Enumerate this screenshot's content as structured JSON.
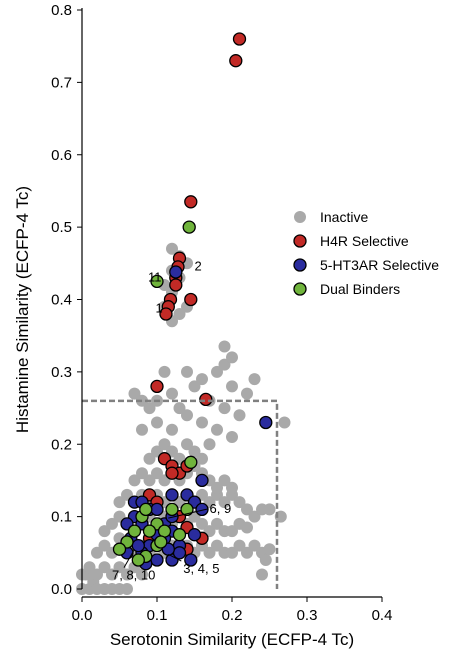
{
  "chart_data": {
    "type": "scatter",
    "xlabel": "Serotonin Similarity (ECFP-4 Tc)",
    "ylabel": "Histamine Similarity (ECFP-4 Tc)",
    "xlim": [
      0,
      0.4
    ],
    "ylim": [
      0,
      0.8
    ],
    "xticks": [
      "0.0",
      "0.1",
      "0.2",
      "0.3",
      "0.4"
    ],
    "yticks": [
      "0.0",
      "0.1",
      "0.2",
      "0.3",
      "0.4",
      "0.5",
      "0.6",
      "0.7",
      "0.8"
    ],
    "legend_position": "right",
    "threshold_box": {
      "x": [
        0,
        0.26
      ],
      "y": [
        0,
        0.26
      ],
      "style": "dashed",
      "color": "#808080"
    },
    "series": [
      {
        "name": "Inactive",
        "color": "#a9a9a9",
        "outline": false,
        "points": [
          [
            0.0,
            0.0
          ],
          [
            0.005,
            0.02
          ],
          [
            0.01,
            0.0
          ],
          [
            0.015,
            0.01
          ],
          [
            0.02,
            0.0
          ],
          [
            0.03,
            0.0
          ],
          [
            0.04,
            0.0
          ],
          [
            0.05,
            0.0
          ],
          [
            0.06,
            0.0
          ],
          [
            0.0,
            0.02
          ],
          [
            0.01,
            0.03
          ],
          [
            0.02,
            0.02
          ],
          [
            0.03,
            0.03
          ],
          [
            0.04,
            0.02
          ],
          [
            0.05,
            0.03
          ],
          [
            0.06,
            0.02
          ],
          [
            0.07,
            0.03
          ],
          [
            0.08,
            0.02
          ],
          [
            0.02,
            0.05
          ],
          [
            0.03,
            0.06
          ],
          [
            0.04,
            0.05
          ],
          [
            0.05,
            0.07
          ],
          [
            0.06,
            0.06
          ],
          [
            0.07,
            0.05
          ],
          [
            0.08,
            0.06
          ],
          [
            0.09,
            0.05
          ],
          [
            0.1,
            0.06
          ],
          [
            0.11,
            0.05
          ],
          [
            0.12,
            0.06
          ],
          [
            0.13,
            0.05
          ],
          [
            0.14,
            0.06
          ],
          [
            0.15,
            0.05
          ],
          [
            0.16,
            0.06
          ],
          [
            0.17,
            0.05
          ],
          [
            0.18,
            0.06
          ],
          [
            0.19,
            0.05
          ],
          [
            0.2,
            0.05
          ],
          [
            0.21,
            0.06
          ],
          [
            0.22,
            0.05
          ],
          [
            0.23,
            0.06
          ],
          [
            0.24,
            0.05
          ],
          [
            0.25,
            0.055
          ],
          [
            0.03,
            0.08
          ],
          [
            0.04,
            0.09
          ],
          [
            0.05,
            0.1
          ],
          [
            0.06,
            0.09
          ],
          [
            0.07,
            0.1
          ],
          [
            0.08,
            0.09
          ],
          [
            0.09,
            0.1
          ],
          [
            0.1,
            0.09
          ],
          [
            0.11,
            0.1
          ],
          [
            0.12,
            0.09
          ],
          [
            0.13,
            0.1
          ],
          [
            0.14,
            0.09
          ],
          [
            0.15,
            0.1
          ],
          [
            0.16,
            0.09
          ],
          [
            0.17,
            0.08
          ],
          [
            0.18,
            0.09
          ],
          [
            0.19,
            0.08
          ],
          [
            0.2,
            0.08
          ],
          [
            0.21,
            0.09
          ],
          [
            0.22,
            0.085
          ],
          [
            0.23,
            0.1
          ],
          [
            0.24,
            0.11
          ],
          [
            0.05,
            0.12
          ],
          [
            0.06,
            0.13
          ],
          [
            0.07,
            0.12
          ],
          [
            0.08,
            0.13
          ],
          [
            0.09,
            0.12
          ],
          [
            0.1,
            0.13
          ],
          [
            0.11,
            0.12
          ],
          [
            0.12,
            0.13
          ],
          [
            0.13,
            0.12
          ],
          [
            0.14,
            0.13
          ],
          [
            0.15,
            0.12
          ],
          [
            0.16,
            0.13
          ],
          [
            0.17,
            0.12
          ],
          [
            0.18,
            0.13
          ],
          [
            0.19,
            0.12
          ],
          [
            0.2,
            0.13
          ],
          [
            0.21,
            0.12
          ],
          [
            0.22,
            0.11
          ],
          [
            0.07,
            0.15
          ],
          [
            0.08,
            0.16
          ],
          [
            0.09,
            0.15
          ],
          [
            0.1,
            0.16
          ],
          [
            0.11,
            0.15
          ],
          [
            0.12,
            0.16
          ],
          [
            0.13,
            0.15
          ],
          [
            0.14,
            0.16
          ],
          [
            0.15,
            0.17
          ],
          [
            0.16,
            0.16
          ],
          [
            0.17,
            0.15
          ],
          [
            0.18,
            0.14
          ],
          [
            0.19,
            0.15
          ],
          [
            0.2,
            0.14
          ],
          [
            0.09,
            0.18
          ],
          [
            0.1,
            0.19
          ],
          [
            0.11,
            0.2
          ],
          [
            0.12,
            0.19
          ],
          [
            0.13,
            0.18
          ],
          [
            0.14,
            0.2
          ],
          [
            0.15,
            0.19
          ],
          [
            0.16,
            0.18
          ],
          [
            0.17,
            0.2
          ],
          [
            0.08,
            0.22
          ],
          [
            0.1,
            0.23
          ],
          [
            0.12,
            0.22
          ],
          [
            0.14,
            0.24
          ],
          [
            0.16,
            0.23
          ],
          [
            0.18,
            0.22
          ],
          [
            0.2,
            0.21
          ],
          [
            0.1,
            0.26
          ],
          [
            0.12,
            0.27
          ],
          [
            0.13,
            0.25
          ],
          [
            0.15,
            0.28
          ],
          [
            0.17,
            0.26
          ],
          [
            0.19,
            0.25
          ],
          [
            0.21,
            0.24
          ],
          [
            0.18,
            0.3
          ],
          [
            0.19,
            0.31
          ],
          [
            0.2,
            0.32
          ],
          [
            0.19,
            0.335
          ],
          [
            0.16,
            0.29
          ],
          [
            0.14,
            0.3
          ],
          [
            0.11,
            0.3
          ],
          [
            0.09,
            0.25
          ],
          [
            0.07,
            0.27
          ],
          [
            0.08,
            0.26
          ],
          [
            0.22,
            0.27
          ],
          [
            0.2,
            0.28
          ],
          [
            0.23,
            0.29
          ],
          [
            0.12,
            0.47
          ],
          [
            0.12,
            0.44
          ],
          [
            0.13,
            0.43
          ],
          [
            0.11,
            0.42
          ],
          [
            0.12,
            0.41
          ],
          [
            0.11,
            0.39
          ],
          [
            0.13,
            0.38
          ],
          [
            0.14,
            0.39
          ],
          [
            0.12,
            0.37
          ],
          [
            0.14,
            0.45
          ],
          [
            0.13,
            0.46
          ],
          [
            0.27,
            0.23
          ],
          [
            0.265,
            0.1
          ],
          [
            0.245,
            0.04
          ],
          [
            0.25,
            0.11
          ],
          [
            0.24,
            0.02
          ]
        ]
      },
      {
        "name": "H4R Selective",
        "label": "H4R Selective",
        "color": "#c22a26",
        "outline": true,
        "points": [
          [
            0.21,
            0.76
          ],
          [
            0.205,
            0.73
          ],
          [
            0.145,
            0.535
          ],
          [
            0.13,
            0.457
          ],
          [
            0.128,
            0.445
          ],
          [
            0.125,
            0.43
          ],
          [
            0.125,
            0.42
          ],
          [
            0.145,
            0.4
          ],
          [
            0.118,
            0.4
          ],
          [
            0.115,
            0.39
          ],
          [
            0.112,
            0.38
          ],
          [
            0.1,
            0.28
          ],
          [
            0.165,
            0.262
          ],
          [
            0.11,
            0.18
          ],
          [
            0.12,
            0.17
          ],
          [
            0.13,
            0.16
          ],
          [
            0.14,
            0.17
          ],
          [
            0.12,
            0.16
          ],
          [
            0.09,
            0.13
          ],
          [
            0.1,
            0.12
          ],
          [
            0.13,
            0.1
          ],
          [
            0.14,
            0.085
          ],
          [
            0.16,
            0.07
          ],
          [
            0.14,
            0.055
          ],
          [
            0.09,
            0.07
          ]
        ]
      },
      {
        "name": "5-HT3AR Selective",
        "label": "5-HT3AR Selective",
        "color": "#2a2c9e",
        "outline": true,
        "points": [
          [
            0.125,
            0.438
          ],
          [
            0.245,
            0.23
          ],
          [
            0.07,
            0.12
          ],
          [
            0.08,
            0.12
          ],
          [
            0.09,
            0.11
          ],
          [
            0.1,
            0.11
          ],
          [
            0.07,
            0.1
          ],
          [
            0.06,
            0.09
          ],
          [
            0.08,
            0.09
          ],
          [
            0.11,
            0.09
          ],
          [
            0.12,
            0.1
          ],
          [
            0.12,
            0.08
          ],
          [
            0.11,
            0.07
          ],
          [
            0.13,
            0.06
          ],
          [
            0.09,
            0.06
          ],
          [
            0.08,
            0.05
          ],
          [
            0.1,
            0.04
          ],
          [
            0.12,
            0.04
          ],
          [
            0.13,
            0.05
          ],
          [
            0.14,
            0.13
          ],
          [
            0.15,
            0.12
          ],
          [
            0.16,
            0.11
          ],
          [
            0.12,
            0.13
          ],
          [
            0.065,
            0.07
          ],
          [
            0.075,
            0.06
          ],
          [
            0.15,
            0.075
          ],
          [
            0.06,
            0.05
          ],
          [
            0.085,
            0.035
          ],
          [
            0.145,
            0.04
          ],
          [
            0.1,
            0.075
          ],
          [
            0.115,
            0.055
          ],
          [
            0.16,
            0.15
          ]
        ]
      },
      {
        "name": "Dual Binders",
        "label": "Dual Binders",
        "color": "#70b43c",
        "outline": true,
        "points": [
          [
            0.1,
            0.425
          ],
          [
            0.143,
            0.5
          ],
          [
            0.145,
            0.175
          ],
          [
            0.08,
            0.1
          ],
          [
            0.085,
            0.11
          ],
          [
            0.1,
            0.09
          ],
          [
            0.06,
            0.065
          ],
          [
            0.07,
            0.08
          ],
          [
            0.09,
            0.08
          ],
          [
            0.05,
            0.055
          ],
          [
            0.085,
            0.045
          ],
          [
            0.1,
            0.06
          ],
          [
            0.11,
            0.08
          ],
          [
            0.13,
            0.075
          ],
          [
            0.14,
            0.11
          ],
          [
            0.12,
            0.11
          ],
          [
            0.075,
            0.04
          ],
          [
            0.105,
            0.065
          ]
        ]
      }
    ],
    "annotations": [
      {
        "text": "2",
        "x": 0.15,
        "y": 0.44
      },
      {
        "text": "11",
        "x": 0.088,
        "y": 0.425
      },
      {
        "text": "1",
        "x": 0.098,
        "y": 0.382
      },
      {
        "text": "6, 9",
        "x": 0.17,
        "y": 0.105
      },
      {
        "text": "7, 8, 10",
        "x": 0.04,
        "y": 0.013
      },
      {
        "text": "3, 4, 5",
        "x": 0.135,
        "y": 0.022
      }
    ]
  }
}
